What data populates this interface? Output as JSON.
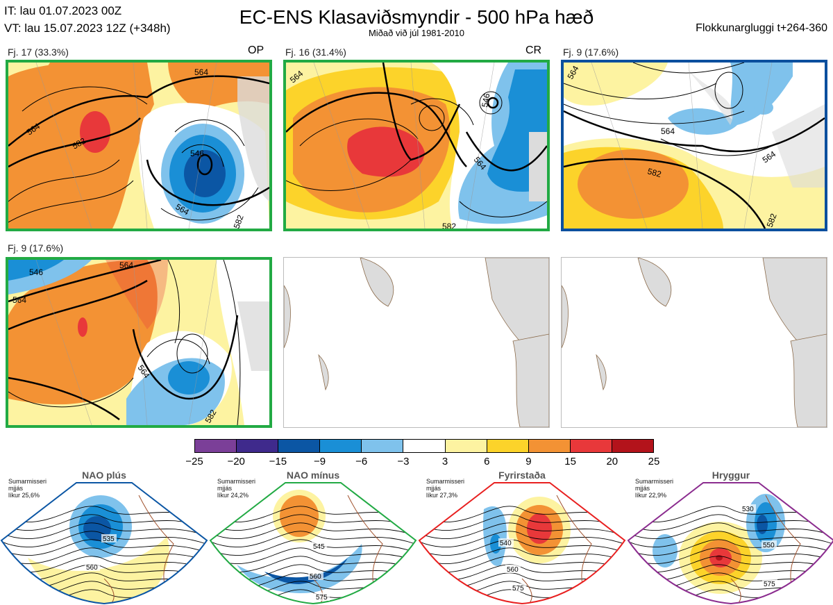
{
  "header": {
    "it_line": "IT: lau 01.07.2023 00Z",
    "vt_line": "VT: lau 15.07.2023 12Z  (+348h)",
    "title": "EC-ENS Klasaviðsmyndir - 500 hPa hæð",
    "subtitle": "Miðað við júl 1981-2010",
    "window": "Flokkunargluggi t+264-360"
  },
  "clusters": [
    {
      "label": "Fj. 17 (33.3%)",
      "tag": "OP",
      "border": "#22aa44",
      "contours": [
        {
          "v": "564"
        },
        {
          "v": "582"
        },
        {
          "v": "564"
        },
        {
          "v": "546"
        },
        {
          "v": "564"
        },
        {
          "v": "582"
        }
      ]
    },
    {
      "label": "Fj. 16 (31.4%)",
      "tag": "CR",
      "border": "#22aa44",
      "contours": [
        {
          "v": "564"
        },
        {
          "v": "546"
        },
        {
          "v": "564"
        },
        {
          "v": "582"
        }
      ]
    },
    {
      "label": "Fj. 9 (17.6%)",
      "tag": "",
      "border": "#0b4f9e",
      "contours": [
        {
          "v": "564"
        },
        {
          "v": "564"
        },
        {
          "v": "582"
        },
        {
          "v": "564"
        },
        {
          "v": "582"
        }
      ]
    },
    {
      "label": "Fj. 9 (17.6%)",
      "tag": "",
      "border": "#22aa44",
      "contours": [
        {
          "v": "546"
        },
        {
          "v": "564"
        },
        {
          "v": "564"
        },
        {
          "v": "564"
        },
        {
          "v": "582"
        }
      ]
    }
  ],
  "colorbar": {
    "ticks": [
      "−25",
      "−20",
      "−15",
      "−9",
      "−6",
      "−3",
      "3",
      "6",
      "9",
      "15",
      "20",
      "25"
    ],
    "colors": [
      "#7b3f98",
      "#3f2a8c",
      "#0b56a4",
      "#1a8fd6",
      "#7fc2ec",
      "#ffffff",
      "#fdf3a1",
      "#fcd32a",
      "#f39234",
      "#e8383a",
      "#b3131b"
    ]
  },
  "regimes": [
    {
      "name": "NAO plús",
      "note": [
        "Sumarmisseri",
        "mjjás",
        "líkur 25,6%"
      ],
      "color": "#0b56a4",
      "line": "#0b56a4",
      "contours": [
        "535",
        "560"
      ]
    },
    {
      "name": "NAO mínus",
      "note": [
        "Sumarmisseri",
        "mjjás",
        "líkur 24,2%"
      ],
      "color": "#22aa44",
      "line": "#22aa44",
      "contours": [
        "545",
        "560",
        "575"
      ]
    },
    {
      "name": "Fyrirstaða",
      "note": [
        "Sumarmisseri",
        "mjjás",
        "líkur 27,3%"
      ],
      "color": "#e82020",
      "line": "#e82020",
      "contours": [
        "540",
        "560",
        "575"
      ]
    },
    {
      "name": "Hryggur",
      "note": [
        "Sumarmisseri",
        "mjjás",
        "líkur 22,9%"
      ],
      "color": "#ee77ee",
      "line": "#8b2c8f",
      "contours": [
        "530",
        "550",
        "575"
      ]
    }
  ]
}
